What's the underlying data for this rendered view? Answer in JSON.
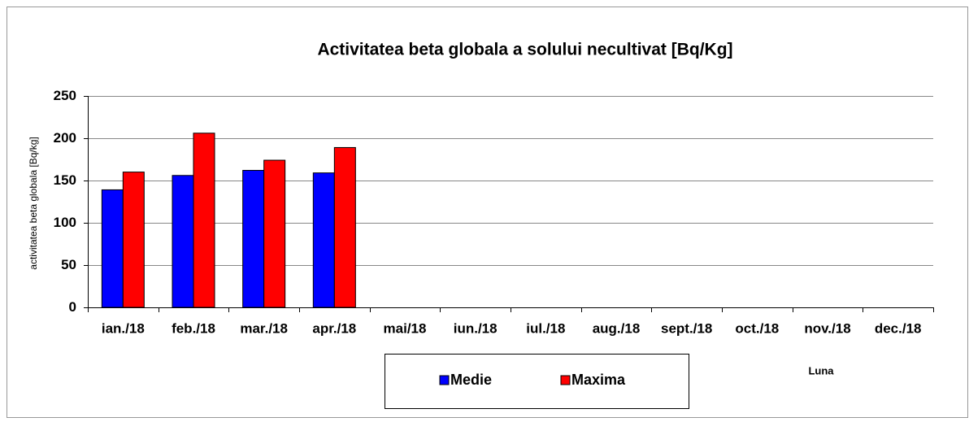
{
  "chart_data": {
    "type": "bar",
    "title": "Activitatea beta globala a solului necultivat [Bq/Kg]",
    "y_label": "activitatea beta globala [Bq/kg]",
    "x_label": "Luna",
    "categories": [
      "ian./18",
      "feb./18",
      "mar./18",
      "apr./18",
      "mai/18",
      "iun./18",
      "iul./18",
      "aug./18",
      "sept./18",
      "oct./18",
      "nov./18",
      "dec./18"
    ],
    "series": [
      {
        "name": "Medie",
        "color": "#0000ff",
        "values": [
          139,
          156,
          162,
          159,
          null,
          null,
          null,
          null,
          null,
          null,
          null,
          null
        ]
      },
      {
        "name": "Maxima",
        "color": "#ff0000",
        "values": [
          160,
          206,
          174,
          189,
          null,
          null,
          null,
          null,
          null,
          null,
          null,
          null
        ]
      }
    ],
    "ylim": [
      0,
      250
    ],
    "yticks": [
      0,
      50,
      100,
      150,
      200,
      250
    ],
    "grid": true
  }
}
